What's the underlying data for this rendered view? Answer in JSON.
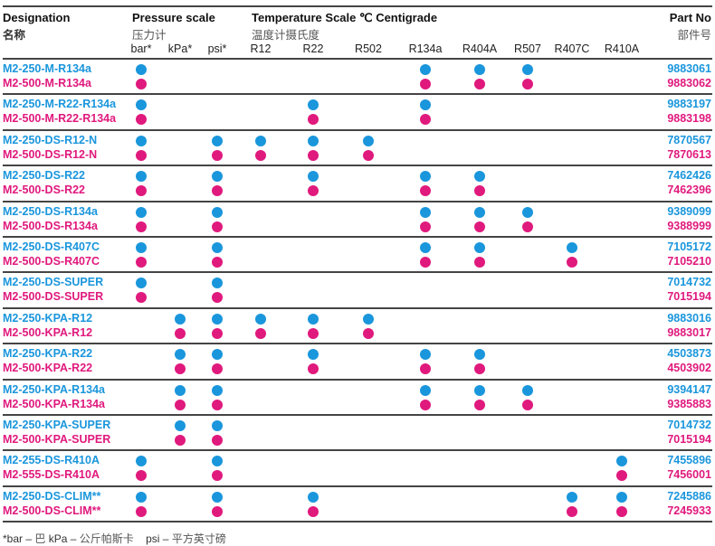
{
  "header": {
    "designation": "Designation",
    "designation_zh": "名称",
    "pressure": "Pressure scale",
    "pressure_zh": "压力计",
    "temperature": "Temperature Scale ℃ Centigrade",
    "temperature_zh": "温度计摄氏度",
    "part_no": "Part No",
    "part_no_zh": "部件号"
  },
  "columns": [
    "bar*",
    "kPa*",
    "psi*",
    "R12",
    "R22",
    "R502",
    "R134a",
    "R404A",
    "R507",
    "R407C",
    "R410A"
  ],
  "colors": {
    "blue": "#1a96dc",
    "pink": "#e0197d"
  },
  "groups": [
    {
      "rows": [
        {
          "designation": "M2-250-M-R134a",
          "part_no": "9883061"
        },
        {
          "designation": "M2-500-M-R134a",
          "part_no": "9883062"
        }
      ],
      "marks": [
        "bar*",
        "R134a",
        "R404A",
        "R507"
      ]
    },
    {
      "rows": [
        {
          "designation": "M2-250-M-R22-R134a",
          "part_no": "9883197"
        },
        {
          "designation": "M2-500-M-R22-R134a",
          "part_no": "9883198"
        }
      ],
      "marks": [
        "bar*",
        "R22",
        "R134a"
      ]
    },
    {
      "rows": [
        {
          "designation": "M2-250-DS-R12-N",
          "part_no": "7870567"
        },
        {
          "designation": "M2-500-DS-R12-N",
          "part_no": "7870613"
        }
      ],
      "marks": [
        "bar*",
        "psi*",
        "R12",
        "R22",
        "R502"
      ]
    },
    {
      "rows": [
        {
          "designation": "M2-250-DS-R22",
          "part_no": "7462426"
        },
        {
          "designation": "M2-500-DS-R22",
          "part_no": "7462396"
        }
      ],
      "marks": [
        "bar*",
        "psi*",
        "R22",
        "R134a",
        "R404A"
      ]
    },
    {
      "rows": [
        {
          "designation": "M2-250-DS-R134a",
          "part_no": "9389099"
        },
        {
          "designation": "M2-500-DS-R134a",
          "part_no": "9388999"
        }
      ],
      "marks": [
        "bar*",
        "psi*",
        "R134a",
        "R404A",
        "R507"
      ]
    },
    {
      "rows": [
        {
          "designation": "M2-250-DS-R407C",
          "part_no": "7105172"
        },
        {
          "designation": "M2-500-DS-R407C",
          "part_no": "7105210"
        }
      ],
      "marks": [
        "bar*",
        "psi*",
        "R134a",
        "R404A",
        "R407C"
      ]
    },
    {
      "rows": [
        {
          "designation": "M2-250-DS-SUPER",
          "part_no": "7014732"
        },
        {
          "designation": "M2-500-DS-SUPER",
          "part_no": "7015194"
        }
      ],
      "marks": [
        "bar*",
        "psi*"
      ]
    },
    {
      "rows": [
        {
          "designation": "M2-250-KPA-R12",
          "part_no": "9883016"
        },
        {
          "designation": "M2-500-KPA-R12",
          "part_no": "9883017"
        }
      ],
      "marks": [
        "kPa*",
        "psi*",
        "R12",
        "R22",
        "R502"
      ]
    },
    {
      "rows": [
        {
          "designation": "M2-250-KPA-R22",
          "part_no": "4503873"
        },
        {
          "designation": "M2-500-KPA-R22",
          "part_no": "4503902"
        }
      ],
      "marks": [
        "kPa*",
        "psi*",
        "R22",
        "R134a",
        "R404A"
      ]
    },
    {
      "rows": [
        {
          "designation": "M2-250-KPA-R134a",
          "part_no": "9394147"
        },
        {
          "designation": "M2-500-KPA-R134a",
          "part_no": "9385883"
        }
      ],
      "marks": [
        "kPa*",
        "psi*",
        "R134a",
        "R404A",
        "R507"
      ]
    },
    {
      "rows": [
        {
          "designation": "M2-250-KPA-SUPER",
          "part_no": "7014732"
        },
        {
          "designation": "M2-500-KPA-SUPER",
          "part_no": "7015194"
        }
      ],
      "marks": [
        "kPa*",
        "psi*"
      ]
    },
    {
      "rows": [
        {
          "designation": "M2-255-DS-R410A",
          "part_no": "7455896"
        },
        {
          "designation": "M2-555-DS-R410A",
          "part_no": "7456001"
        }
      ],
      "marks": [
        "bar*",
        "psi*",
        "R410A"
      ]
    },
    {
      "rows": [
        {
          "designation": "M2-250-DS-CLIM**",
          "part_no": "7245886"
        },
        {
          "designation": "M2-500-DS-CLIM**",
          "part_no": "7245933"
        }
      ],
      "marks": [
        "bar*",
        "psi*",
        "R22",
        "R407C",
        "R410A"
      ]
    }
  ],
  "footnote": {
    "bar": "*bar –",
    "bar_zh": "巴",
    "kpa": "kPa –",
    "kpa_zh": "公斤帕斯卡",
    "psi": "psi –",
    "psi_zh": "平方英寸磅"
  }
}
